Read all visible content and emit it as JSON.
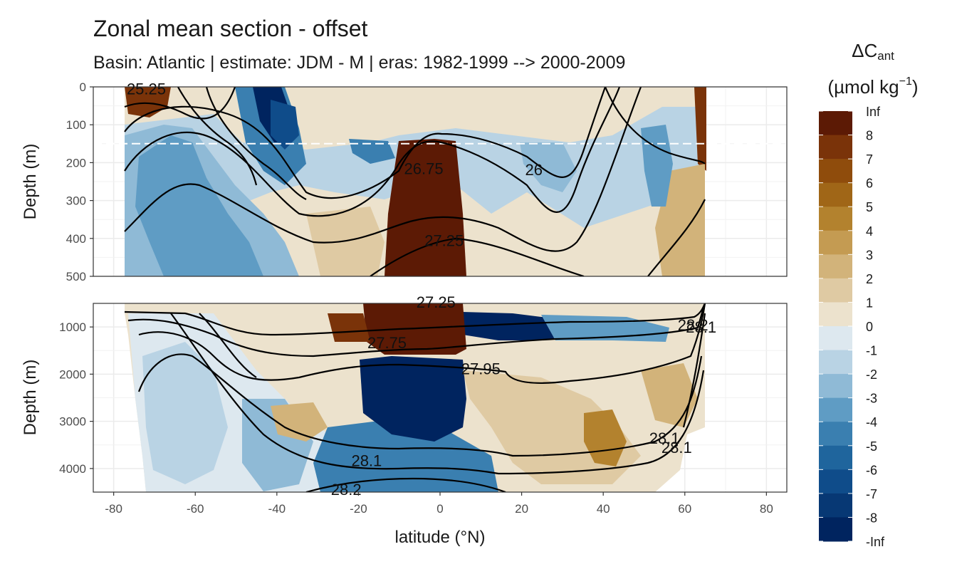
{
  "chart_data": {
    "type": "heatmap",
    "title": "Zonal mean section - offset",
    "subtitle": "Basin: Atlantic | estimate: JDM - M | eras: 1982-1999 --> 2000-2009",
    "xlabel": "latitude (°N)",
    "ylabel": "Depth (m)",
    "xlim": [
      -85,
      85
    ],
    "x_ticks": [
      "-80",
      "-60",
      "-40",
      "-20",
      "0",
      "20",
      "40",
      "60",
      "80"
    ],
    "x_tick_values": [
      -80,
      -60,
      -40,
      -20,
      0,
      20,
      40,
      60,
      80
    ],
    "panels": [
      {
        "name": "upper",
        "ylim": [
          0,
          500
        ],
        "y_ticks": [
          "0",
          "100",
          "200",
          "300",
          "400",
          "500"
        ],
        "y_tick_values": [
          0,
          100,
          200,
          300,
          400,
          500
        ],
        "reference_depth_dashed": 150
      },
      {
        "name": "lower",
        "ylim": [
          500,
          4500
        ],
        "y_ticks": [
          "1000",
          "2000",
          "3000",
          "4000"
        ],
        "y_tick_values": [
          1000,
          2000,
          3000,
          4000
        ]
      }
    ],
    "contour_labels": [
      {
        "text": "25.25",
        "lat": -72,
        "depth": 5,
        "panel": "upper"
      },
      {
        "text": "26.75",
        "lat": -4,
        "depth": 215,
        "panel": "upper"
      },
      {
        "text": "26",
        "lat": 23,
        "depth": 218,
        "panel": "upper"
      },
      {
        "text": "27.25",
        "lat": 1,
        "depth": 405,
        "panel": "upper"
      },
      {
        "text": "27.25",
        "lat": -1,
        "depth": 460,
        "panel": "lower"
      },
      {
        "text": "27.75",
        "lat": -13,
        "depth": 1330,
        "panel": "lower"
      },
      {
        "text": "27.95",
        "lat": 10,
        "depth": 1880,
        "panel": "lower"
      },
      {
        "text": "28.1",
        "lat": -18,
        "depth": 3830,
        "panel": "lower"
      },
      {
        "text": "28.2",
        "lat": -23,
        "depth": 4480,
        "panel": "lower"
      },
      {
        "text": "28.1",
        "lat": 55,
        "depth": 3350,
        "panel": "lower"
      },
      {
        "text": "28.1",
        "lat": 58,
        "depth": 3550,
        "panel": "lower"
      },
      {
        "text": "28.2",
        "lat": 62,
        "depth": 950,
        "panel": "lower"
      },
      {
        "text": "28.1",
        "lat": 64,
        "depth": 1000,
        "panel": "lower"
      }
    ],
    "legend": {
      "title_main": "ΔC",
      "title_sub": "ant",
      "unit_prefix": "(µmol kg",
      "unit_exp": "−1",
      "unit_suffix": ")",
      "labels": [
        "Inf",
        "8",
        "7",
        "6",
        "5",
        "4",
        "3",
        "2",
        "1",
        "0",
        "-1",
        "-2",
        "-3",
        "-4",
        "-5",
        "-6",
        "-7",
        "-8",
        "-Inf"
      ],
      "colors": [
        "#5c1a05",
        "#7a3309",
        "#8f4c0c",
        "#a06617",
        "#b3822e",
        "#c49b52",
        "#d2b37a",
        "#dfcaa3",
        "#ece2cd",
        "#dde8ef",
        "#b9d3e4",
        "#8fbad6",
        "#5f9cc4",
        "#3a7fb0",
        "#1f659d",
        "#0f4c8a",
        "#073874",
        "#00245f"
      ]
    }
  }
}
